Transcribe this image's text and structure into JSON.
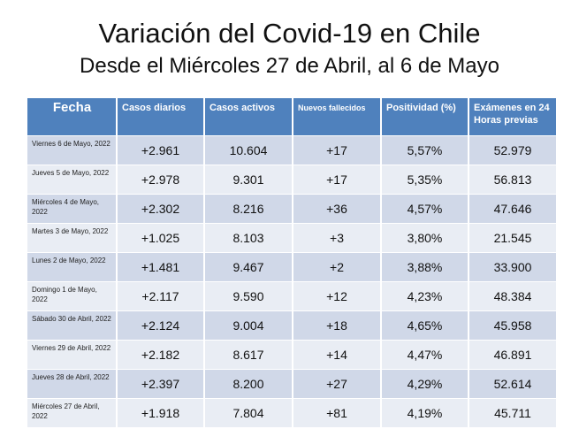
{
  "title": "Variación del Covid-19 en Chile",
  "subtitle": "Desde el Miércoles 27 de Abril, al 6 de Mayo",
  "table": {
    "headers": [
      "Fecha",
      "Casos diarios",
      "Casos activos",
      "Nuevos fallecidos",
      "Positividad (%)",
      "Exámenes en 24 Horas previas"
    ],
    "rows": [
      [
        "Viernes 6 de Mayo, 2022",
        "+2.961",
        "10.604",
        "+17",
        "5,57%",
        "52.979"
      ],
      [
        "Jueves 5 de Mayo, 2022",
        "+2.978",
        "9.301",
        "+17",
        "5,35%",
        "56.813"
      ],
      [
        "Miércoles 4 de Mayo, 2022",
        "+2.302",
        "8.216",
        "+36",
        "4,57%",
        "47.646"
      ],
      [
        "Martes 3 de Mayo, 2022",
        "+1.025",
        "8.103",
        "+3",
        "3,80%",
        "21.545"
      ],
      [
        "Lunes 2 de Mayo, 2022",
        "+1.481",
        "9.467",
        "+2",
        "3,88%",
        "33.900"
      ],
      [
        "Domingo 1 de Mayo, 2022",
        "+2.117",
        "9.590",
        "+12",
        "4,23%",
        "48.384"
      ],
      [
        "Sábado 30 de Abril, 2022",
        "+2.124",
        "9.004",
        "+18",
        "4,65%",
        "45.958"
      ],
      [
        "Viernes 29 de Abril, 2022",
        "+2.182",
        "8.617",
        "+14",
        "4,47%",
        "46.891"
      ],
      [
        "Jueves 28 de Abril, 2022",
        "+2.397",
        "8.200",
        "+27",
        "4,29%",
        "52.614"
      ],
      [
        "Miércoles 27 de Abril, 2022",
        "+1.918",
        "7.804",
        "+81",
        "4,19%",
        "45.711"
      ]
    ]
  },
  "colors": {
    "header": "#4f81bd",
    "row_odd": "#d0d8e8",
    "row_even": "#e9edf4"
  }
}
